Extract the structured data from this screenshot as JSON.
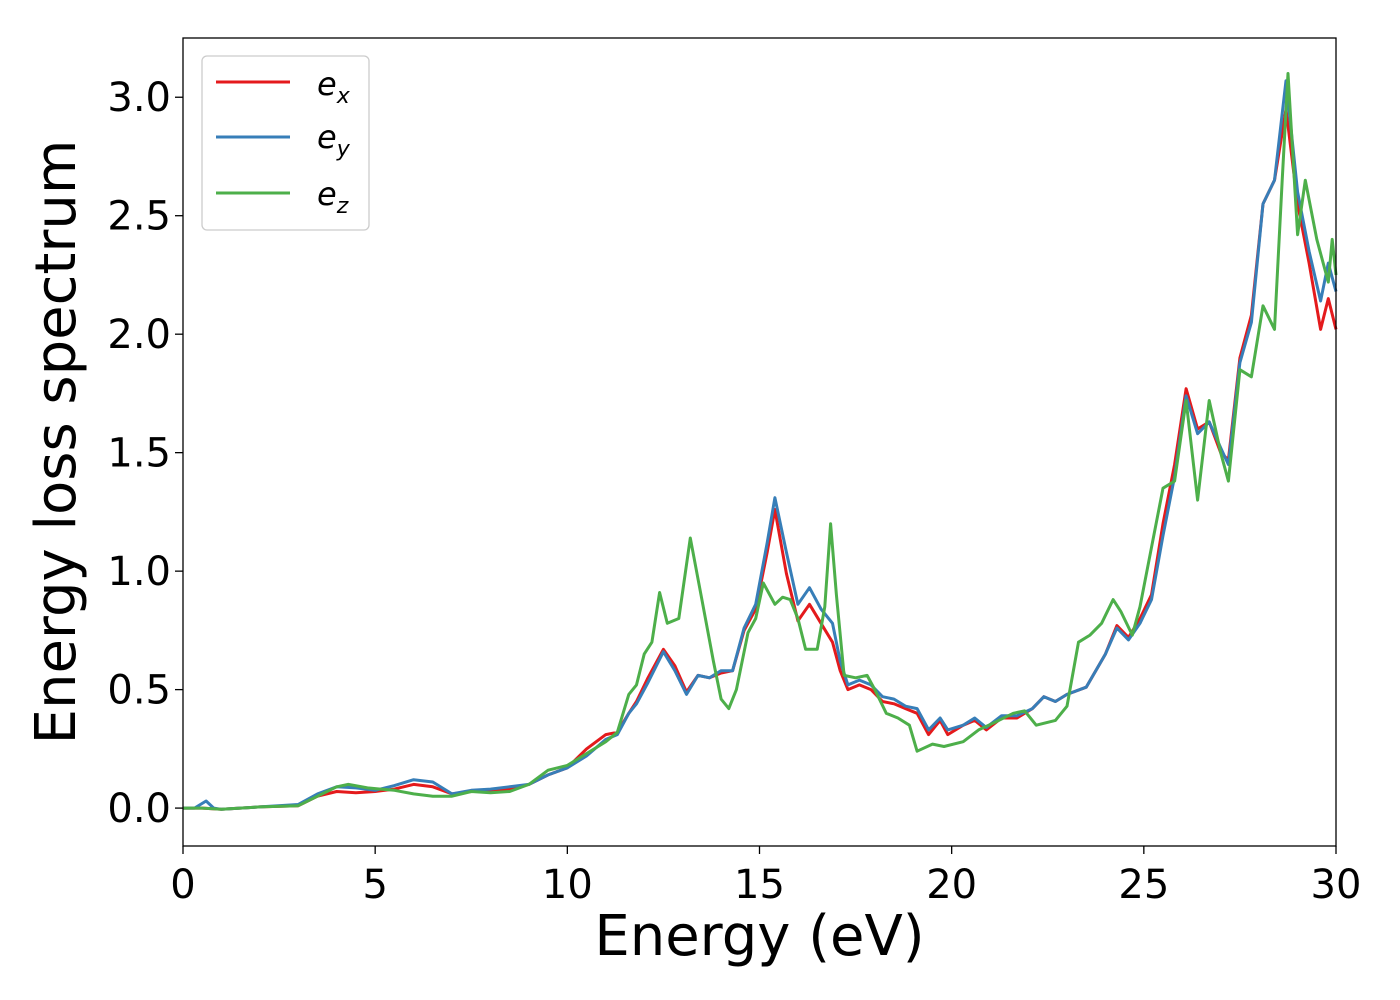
{
  "chart_data": {
    "type": "line",
    "title": "",
    "xlabel": "Energy (eV)",
    "ylabel": "Energy loss spectrum",
    "xlim": [
      0,
      30
    ],
    "ylim": [
      -0.16,
      3.25
    ],
    "xticks": [
      0,
      5,
      10,
      15,
      20,
      25,
      30
    ],
    "xtick_labels": [
      "0",
      "5",
      "10",
      "15",
      "20",
      "25",
      "30"
    ],
    "yticks": [
      0.0,
      0.5,
      1.0,
      1.5,
      2.0,
      2.5,
      3.0
    ],
    "ytick_labels": [
      "0.0",
      "0.5",
      "1.0",
      "1.5",
      "2.0",
      "2.5",
      "3.0"
    ],
    "grid": false,
    "legend": "top-left",
    "series": [
      {
        "name": "e_x",
        "name_main": "e",
        "name_sub": "x",
        "color": "#e41a1c",
        "points": [
          [
            0,
            0
          ],
          [
            0.5,
            0
          ],
          [
            1,
            -0.005
          ],
          [
            2,
            0.005
          ],
          [
            3,
            0.01
          ],
          [
            3.5,
            0.05
          ],
          [
            4,
            0.07
          ],
          [
            4.5,
            0.065
          ],
          [
            5,
            0.07
          ],
          [
            5.5,
            0.08
          ],
          [
            6,
            0.1
          ],
          [
            6.5,
            0.09
          ],
          [
            7,
            0.06
          ],
          [
            7.5,
            0.07
          ],
          [
            8,
            0.075
          ],
          [
            8.5,
            0.08
          ],
          [
            9,
            0.1
          ],
          [
            9.5,
            0.14
          ],
          [
            10,
            0.17
          ],
          [
            10.5,
            0.25
          ],
          [
            11,
            0.31
          ],
          [
            11.3,
            0.32
          ],
          [
            11.6,
            0.4
          ],
          [
            11.8,
            0.45
          ],
          [
            12.1,
            0.55
          ],
          [
            12.5,
            0.67
          ],
          [
            12.8,
            0.6
          ],
          [
            13.1,
            0.49
          ],
          [
            13.4,
            0.56
          ],
          [
            13.7,
            0.55
          ],
          [
            14,
            0.57
          ],
          [
            14.3,
            0.58
          ],
          [
            14.6,
            0.75
          ],
          [
            14.9,
            0.84
          ],
          [
            15.2,
            1.08
          ],
          [
            15.4,
            1.26
          ],
          [
            15.7,
            0.99
          ],
          [
            16,
            0.79
          ],
          [
            16.3,
            0.86
          ],
          [
            16.6,
            0.78
          ],
          [
            16.9,
            0.7
          ],
          [
            17.1,
            0.58
          ],
          [
            17.3,
            0.5
          ],
          [
            17.6,
            0.52
          ],
          [
            17.9,
            0.5
          ],
          [
            18.2,
            0.45
          ],
          [
            18.5,
            0.44
          ],
          [
            18.8,
            0.42
          ],
          [
            19.1,
            0.4
          ],
          [
            19.4,
            0.31
          ],
          [
            19.7,
            0.37
          ],
          [
            19.9,
            0.31
          ],
          [
            20.3,
            0.35
          ],
          [
            20.6,
            0.37
          ],
          [
            20.9,
            0.33
          ],
          [
            21.3,
            0.38
          ],
          [
            21.7,
            0.38
          ],
          [
            22.1,
            0.42
          ],
          [
            22.4,
            0.47
          ],
          [
            22.7,
            0.45
          ],
          [
            23,
            0.48
          ],
          [
            23.5,
            0.51
          ],
          [
            24,
            0.65
          ],
          [
            24.3,
            0.77
          ],
          [
            24.6,
            0.72
          ],
          [
            24.9,
            0.8
          ],
          [
            25.2,
            0.9
          ],
          [
            25.5,
            1.2
          ],
          [
            25.8,
            1.45
          ],
          [
            26.1,
            1.77
          ],
          [
            26.4,
            1.6
          ],
          [
            26.7,
            1.63
          ],
          [
            27,
            1.5
          ],
          [
            27.2,
            1.47
          ],
          [
            27.5,
            1.9
          ],
          [
            27.8,
            2.08
          ],
          [
            28.1,
            2.55
          ],
          [
            28.4,
            2.65
          ],
          [
            28.7,
            2.95
          ],
          [
            29,
            2.55
          ],
          [
            29.3,
            2.3
          ],
          [
            29.6,
            2.02
          ],
          [
            29.8,
            2.15
          ],
          [
            30,
            2.02
          ]
        ]
      },
      {
        "name": "e_y",
        "name_main": "e",
        "name_sub": "y",
        "color": "#377eb8",
        "points": [
          [
            0,
            0
          ],
          [
            0.3,
            0
          ],
          [
            0.6,
            0.03
          ],
          [
            0.8,
            0
          ],
          [
            1,
            -0.005
          ],
          [
            2,
            0.005
          ],
          [
            3,
            0.015
          ],
          [
            3.5,
            0.06
          ],
          [
            4,
            0.09
          ],
          [
            4.5,
            0.085
          ],
          [
            5,
            0.075
          ],
          [
            5.5,
            0.095
          ],
          [
            6,
            0.12
          ],
          [
            6.5,
            0.11
          ],
          [
            7,
            0.06
          ],
          [
            7.5,
            0.075
          ],
          [
            8,
            0.08
          ],
          [
            8.5,
            0.09
          ],
          [
            9,
            0.1
          ],
          [
            9.5,
            0.14
          ],
          [
            10,
            0.17
          ],
          [
            10.5,
            0.22
          ],
          [
            11,
            0.29
          ],
          [
            11.3,
            0.31
          ],
          [
            11.6,
            0.4
          ],
          [
            11.8,
            0.44
          ],
          [
            12.1,
            0.53
          ],
          [
            12.5,
            0.66
          ],
          [
            12.8,
            0.58
          ],
          [
            13.1,
            0.48
          ],
          [
            13.4,
            0.56
          ],
          [
            13.7,
            0.55
          ],
          [
            14,
            0.58
          ],
          [
            14.3,
            0.58
          ],
          [
            14.6,
            0.76
          ],
          [
            14.9,
            0.86
          ],
          [
            15.2,
            1.12
          ],
          [
            15.4,
            1.31
          ],
          [
            15.7,
            1.08
          ],
          [
            16,
            0.86
          ],
          [
            16.3,
            0.93
          ],
          [
            16.6,
            0.84
          ],
          [
            16.9,
            0.78
          ],
          [
            17.1,
            0.62
          ],
          [
            17.3,
            0.52
          ],
          [
            17.6,
            0.54
          ],
          [
            17.9,
            0.52
          ],
          [
            18.2,
            0.47
          ],
          [
            18.5,
            0.46
          ],
          [
            18.8,
            0.43
          ],
          [
            19.1,
            0.42
          ],
          [
            19.4,
            0.33
          ],
          [
            19.7,
            0.38
          ],
          [
            19.9,
            0.33
          ],
          [
            20.3,
            0.35
          ],
          [
            20.6,
            0.38
          ],
          [
            20.9,
            0.34
          ],
          [
            21.3,
            0.39
          ],
          [
            21.7,
            0.39
          ],
          [
            22.1,
            0.42
          ],
          [
            22.4,
            0.47
          ],
          [
            22.7,
            0.45
          ],
          [
            23,
            0.48
          ],
          [
            23.5,
            0.51
          ],
          [
            24,
            0.65
          ],
          [
            24.3,
            0.76
          ],
          [
            24.6,
            0.71
          ],
          [
            24.9,
            0.78
          ],
          [
            25.2,
            0.88
          ],
          [
            25.5,
            1.15
          ],
          [
            25.8,
            1.4
          ],
          [
            26.1,
            1.74
          ],
          [
            26.4,
            1.58
          ],
          [
            26.7,
            1.63
          ],
          [
            27,
            1.52
          ],
          [
            27.2,
            1.45
          ],
          [
            27.5,
            1.88
          ],
          [
            27.8,
            2.05
          ],
          [
            28.1,
            2.55
          ],
          [
            28.4,
            2.65
          ],
          [
            28.7,
            3.07
          ],
          [
            29,
            2.6
          ],
          [
            29.3,
            2.35
          ],
          [
            29.6,
            2.14
          ],
          [
            29.8,
            2.3
          ],
          [
            30,
            2.18
          ]
        ]
      },
      {
        "name": "e_z",
        "name_main": "e",
        "name_sub": "z",
        "color": "#4daf4a",
        "points": [
          [
            0,
            0
          ],
          [
            0.5,
            0
          ],
          [
            1,
            -0.005
          ],
          [
            2,
            0.005
          ],
          [
            3,
            0.01
          ],
          [
            3.5,
            0.05
          ],
          [
            4,
            0.09
          ],
          [
            4.3,
            0.1
          ],
          [
            4.8,
            0.085
          ],
          [
            5.5,
            0.075
          ],
          [
            6,
            0.06
          ],
          [
            6.5,
            0.05
          ],
          [
            7,
            0.05
          ],
          [
            7.5,
            0.07
          ],
          [
            8,
            0.065
          ],
          [
            8.5,
            0.07
          ],
          [
            9,
            0.1
          ],
          [
            9.5,
            0.16
          ],
          [
            10,
            0.18
          ],
          [
            10.5,
            0.23
          ],
          [
            11,
            0.28
          ],
          [
            11.3,
            0.32
          ],
          [
            11.6,
            0.48
          ],
          [
            11.8,
            0.52
          ],
          [
            12,
            0.65
          ],
          [
            12.2,
            0.7
          ],
          [
            12.4,
            0.91
          ],
          [
            12.6,
            0.78
          ],
          [
            12.9,
            0.8
          ],
          [
            13.2,
            1.14
          ],
          [
            13.5,
            0.88
          ],
          [
            13.8,
            0.62
          ],
          [
            14,
            0.46
          ],
          [
            14.2,
            0.42
          ],
          [
            14.4,
            0.5
          ],
          [
            14.7,
            0.74
          ],
          [
            14.9,
            0.8
          ],
          [
            15.1,
            0.95
          ],
          [
            15.4,
            0.86
          ],
          [
            15.6,
            0.89
          ],
          [
            15.8,
            0.88
          ],
          [
            16,
            0.8
          ],
          [
            16.2,
            0.67
          ],
          [
            16.5,
            0.67
          ],
          [
            16.7,
            0.85
          ],
          [
            16.85,
            1.2
          ],
          [
            17,
            0.9
          ],
          [
            17.2,
            0.56
          ],
          [
            17.5,
            0.55
          ],
          [
            17.8,
            0.56
          ],
          [
            18,
            0.5
          ],
          [
            18.3,
            0.4
          ],
          [
            18.6,
            0.38
          ],
          [
            18.9,
            0.35
          ],
          [
            19.1,
            0.24
          ],
          [
            19.5,
            0.27
          ],
          [
            19.8,
            0.26
          ],
          [
            20.3,
            0.28
          ],
          [
            20.7,
            0.33
          ],
          [
            21.1,
            0.36
          ],
          [
            21.6,
            0.4
          ],
          [
            21.9,
            0.41
          ],
          [
            22.2,
            0.35
          ],
          [
            22.7,
            0.37
          ],
          [
            23,
            0.43
          ],
          [
            23.3,
            0.7
          ],
          [
            23.6,
            0.73
          ],
          [
            23.9,
            0.78
          ],
          [
            24.2,
            0.88
          ],
          [
            24.4,
            0.83
          ],
          [
            24.7,
            0.73
          ],
          [
            24.9,
            0.85
          ],
          [
            25.2,
            1.1
          ],
          [
            25.5,
            1.35
          ],
          [
            25.8,
            1.38
          ],
          [
            26.1,
            1.72
          ],
          [
            26.4,
            1.3
          ],
          [
            26.7,
            1.72
          ],
          [
            27,
            1.5
          ],
          [
            27.2,
            1.38
          ],
          [
            27.5,
            1.85
          ],
          [
            27.8,
            1.82
          ],
          [
            28.1,
            2.12
          ],
          [
            28.4,
            2.02
          ],
          [
            28.6,
            2.65
          ],
          [
            28.75,
            3.1
          ],
          [
            29,
            2.42
          ],
          [
            29.2,
            2.65
          ],
          [
            29.5,
            2.4
          ],
          [
            29.8,
            2.22
          ],
          [
            29.9,
            2.4
          ],
          [
            30,
            2.25
          ]
        ]
      }
    ]
  }
}
